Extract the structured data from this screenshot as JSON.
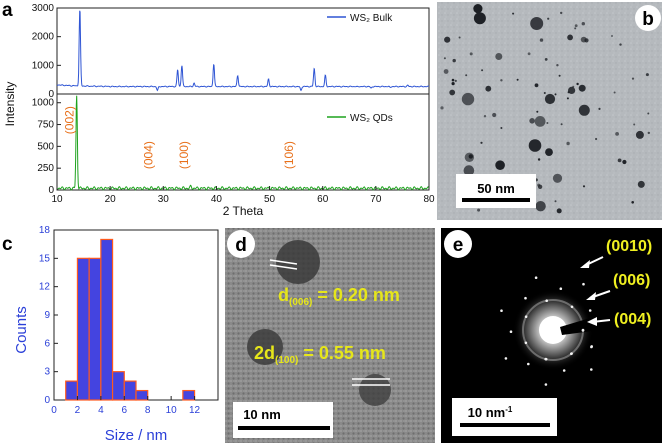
{
  "figure": {
    "panels": [
      {
        "id": "a",
        "label": "a"
      },
      {
        "id": "b",
        "label": "b",
        "scalebar": "50 nm"
      },
      {
        "id": "c",
        "label": "c"
      },
      {
        "id": "d",
        "label": "d",
        "scalebar": "10 nm",
        "annotations": {
          "d006_prefix": "d",
          "d006_sub": "(006)",
          "d006_value": " = 0.20 nm",
          "d100_prefix": "2d",
          "d100_sub": "(100)",
          "d100_value": " = 0.55 nm"
        }
      },
      {
        "id": "e",
        "label": "e",
        "scalebar": "10 nm",
        "scalebar_sup": "-1",
        "rings": [
          "(0010)",
          "(006)",
          "(004)"
        ]
      }
    ]
  },
  "chart_data": [
    {
      "type": "line",
      "panel": "a-top",
      "ylabel": "Intensity",
      "ylim": [
        0,
        3000
      ],
      "yticks": [
        0,
        1000,
        2000,
        3000
      ],
      "xlim": [
        10,
        80
      ],
      "series": [
        {
          "name": "WS₂ Bulk",
          "color": "#2f55d4",
          "peaks": [
            [
              14.3,
              2950
            ],
            [
              28.9,
              120
            ],
            [
              32.7,
              850
            ],
            [
              33.5,
              1000
            ],
            [
              35.8,
              380
            ],
            [
              39.5,
              1050
            ],
            [
              44.0,
              650
            ],
            [
              49.8,
              520
            ],
            [
              55.9,
              120
            ],
            [
              58.4,
              900
            ],
            [
              60.5,
              650
            ],
            [
              66.5,
              250
            ],
            [
              69.1,
              200
            ],
            [
              72.7,
              230
            ],
            [
              76.0,
              300
            ]
          ]
        }
      ]
    },
    {
      "type": "line",
      "panel": "a-bottom",
      "xlabel": "2 Theta",
      "xlim": [
        10,
        80
      ],
      "xticks": [
        10,
        20,
        30,
        40,
        50,
        60,
        70,
        80
      ],
      "ylim": [
        0,
        1100
      ],
      "yticks": [
        0,
        250,
        500,
        750,
        1000
      ],
      "series": [
        {
          "name": "WS₂ QDs",
          "color": "#1ea31e",
          "peaks": [
            [
              13.7,
              1080
            ],
            [
              28.5,
              20
            ],
            [
              35.2,
              40
            ],
            [
              55.0,
              25
            ]
          ]
        }
      ],
      "annotations": [
        {
          "x": 13.7,
          "text": "(002)"
        },
        {
          "x": 28.5,
          "text": "(004)"
        },
        {
          "x": 35.2,
          "text": "(100)"
        },
        {
          "x": 55.0,
          "text": "(106)"
        }
      ]
    },
    {
      "type": "bar",
      "panel": "c",
      "xlabel": "Size / nm",
      "ylabel": "Counts",
      "xlim": [
        0,
        14
      ],
      "ylim": [
        0,
        18
      ],
      "xticks": [
        0,
        2,
        4,
        6,
        8,
        10,
        12
      ],
      "yticks": [
        0,
        3,
        6,
        9,
        12,
        15,
        18
      ],
      "bins": [
        [
          1,
          2
        ],
        [
          2,
          3
        ],
        [
          3,
          4
        ],
        [
          4,
          5
        ],
        [
          5,
          6
        ],
        [
          6,
          7
        ],
        [
          7,
          8
        ],
        [
          11,
          12
        ]
      ],
      "values": [
        2,
        15,
        15,
        17,
        3,
        2,
        1,
        1
      ]
    }
  ]
}
